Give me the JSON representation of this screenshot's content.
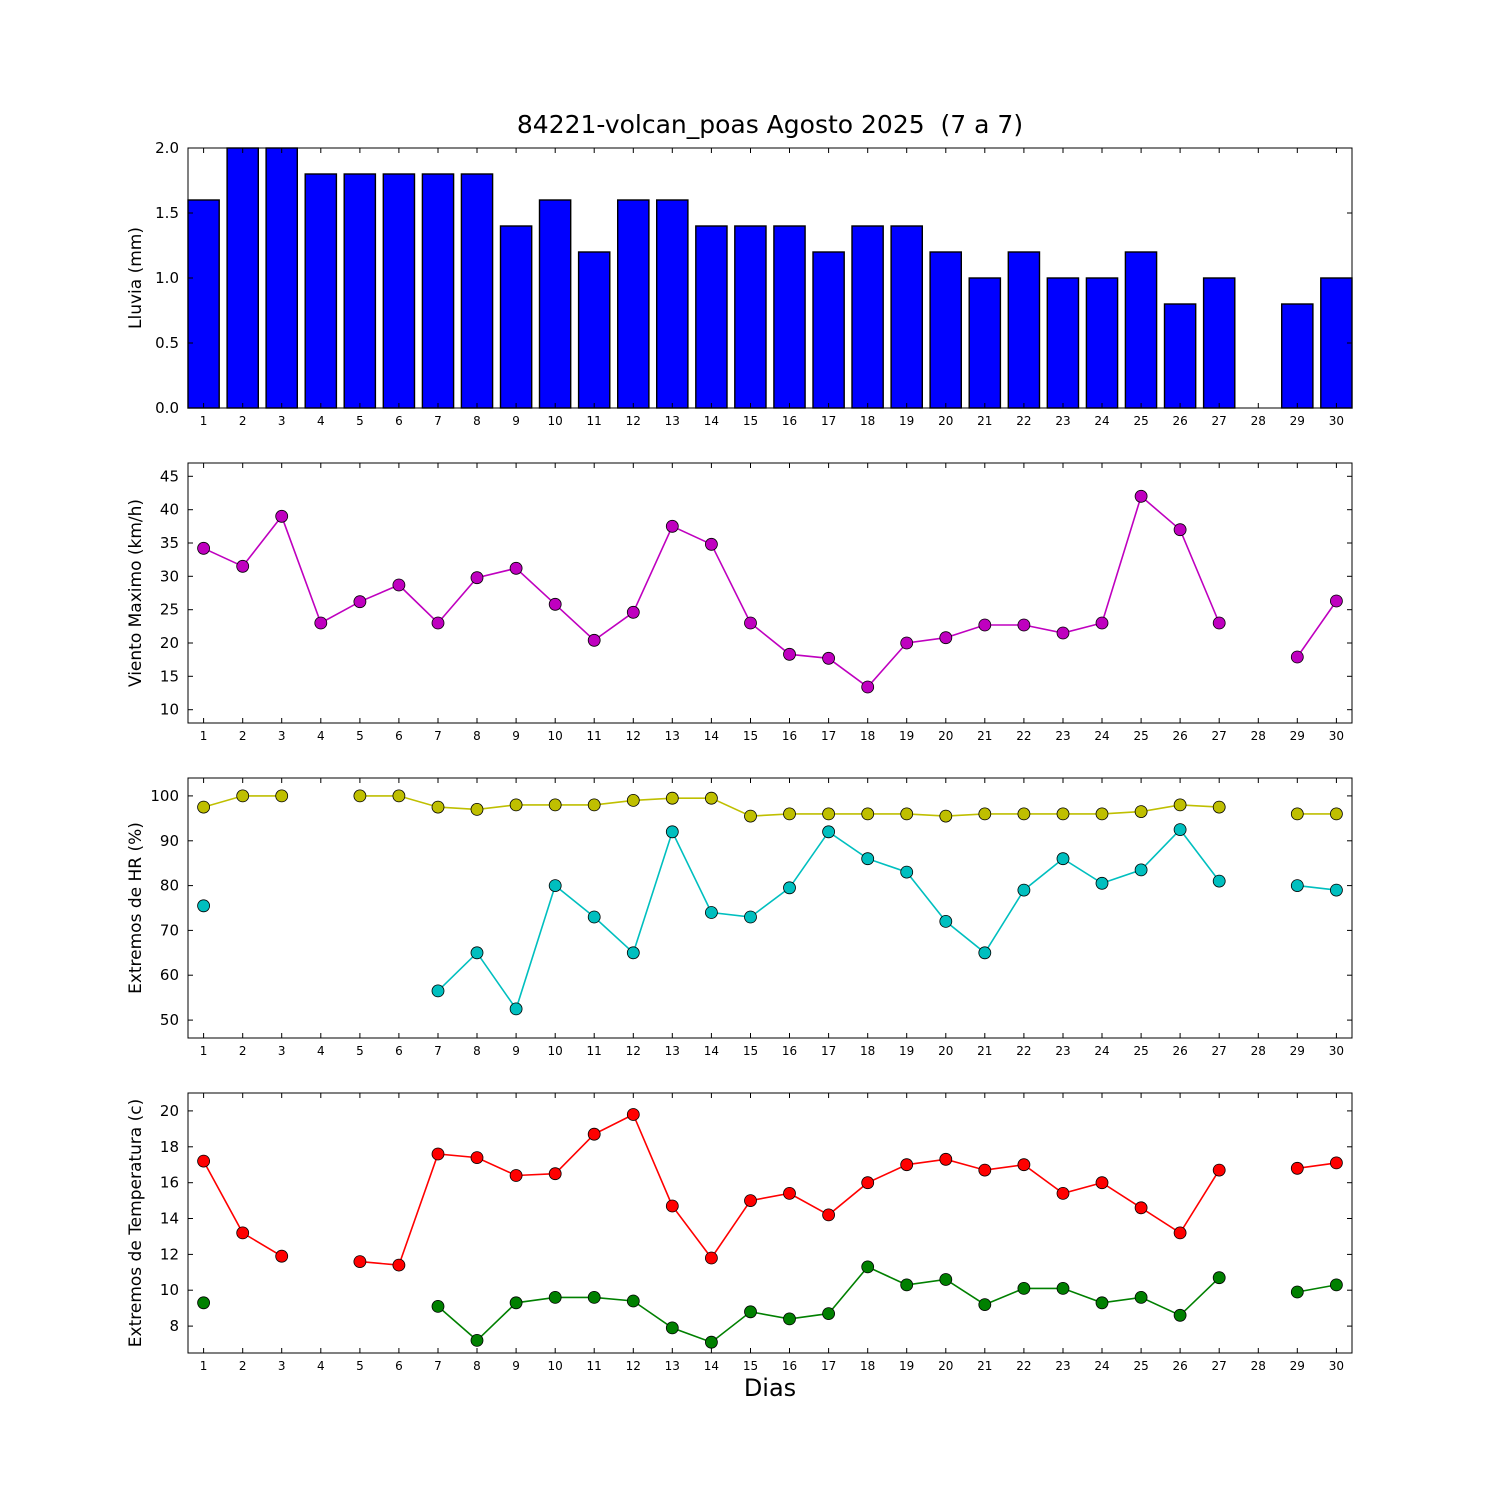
{
  "figure": {
    "title": "84221-volcan_poas Agosto 2025  (7 a 7)",
    "xlabel": "Dias",
    "background": "#ffffff",
    "categories": [
      1,
      2,
      3,
      4,
      5,
      6,
      7,
      8,
      9,
      10,
      11,
      12,
      13,
      14,
      15,
      16,
      17,
      18,
      19,
      20,
      21,
      22,
      23,
      24,
      25,
      26,
      27,
      28,
      29,
      30
    ]
  },
  "chart_data": [
    {
      "type": "bar",
      "ylabel": "Lluvia (mm)",
      "bar_color": "#0000ff",
      "bar_edge_color": "#000000",
      "ylim": [
        0,
        2
      ],
      "yticks": [
        0,
        0.5,
        1,
        1.5,
        2
      ],
      "ytick_labels": [
        "0.0",
        "0.5",
        "1.0",
        "1.5",
        "2.0"
      ],
      "values": [
        1.6,
        2.0,
        2.0,
        1.8,
        1.8,
        1.8,
        1.8,
        1.8,
        1.4,
        1.6,
        1.2,
        1.6,
        1.6,
        1.4,
        1.4,
        1.4,
        1.2,
        1.4,
        1.4,
        1.2,
        1.0,
        1.2,
        1.0,
        1.0,
        1.2,
        0.8,
        1.0,
        0,
        0.8,
        1.0
      ]
    },
    {
      "type": "line",
      "ylabel": "Viento Maximo (km/h)",
      "ylim": [
        8,
        47
      ],
      "yticks": [
        10,
        15,
        20,
        25,
        30,
        35,
        40,
        45
      ],
      "ytick_labels": [
        "10",
        "15",
        "20",
        "25",
        "30",
        "35",
        "40",
        "45"
      ],
      "series": [
        {
          "name": "viento-maximo",
          "color": "#bf00bf",
          "values": [
            34.2,
            31.5,
            39.0,
            23.0,
            26.2,
            28.7,
            23.0,
            29.8,
            31.2,
            25.8,
            20.4,
            24.6,
            37.5,
            34.8,
            23.0,
            18.3,
            17.7,
            13.4,
            20.0,
            20.8,
            22.7,
            22.7,
            21.5,
            23.0,
            42.0,
            37.0,
            23.0,
            null,
            17.9,
            26.3
          ]
        }
      ]
    },
    {
      "type": "line",
      "ylabel": "Extremos de HR (%)",
      "ylim": [
        46,
        104
      ],
      "yticks": [
        50,
        60,
        70,
        80,
        90,
        100
      ],
      "ytick_labels": [
        "50",
        "60",
        "70",
        "80",
        "90",
        "100"
      ],
      "series": [
        {
          "name": "hr-maxima",
          "color": "#bfbf00",
          "values": [
            97.5,
            100,
            100,
            null,
            100,
            100,
            97.5,
            97,
            98,
            98,
            98,
            99,
            99.5,
            99.5,
            95.5,
            96,
            96,
            96,
            96,
            95.5,
            96,
            96,
            96,
            96,
            96.5,
            98,
            97.5,
            null,
            96,
            96
          ]
        },
        {
          "name": "hr-minima",
          "color": "#00bfbf",
          "values": [
            75.5,
            null,
            null,
            null,
            null,
            null,
            56.5,
            65,
            52.5,
            80,
            73,
            65,
            92,
            74,
            73,
            79.5,
            92,
            86,
            83,
            72,
            65,
            79,
            86,
            80.5,
            83.5,
            92.5,
            81,
            null,
            80,
            79
          ]
        }
      ]
    },
    {
      "type": "line",
      "ylabel": "Extremos de Temperatura (c)",
      "ylim": [
        6.5,
        21
      ],
      "yticks": [
        8,
        10,
        12,
        14,
        16,
        18,
        20
      ],
      "ytick_labels": [
        "8",
        "10",
        "12",
        "14",
        "16",
        "18",
        "20"
      ],
      "series": [
        {
          "name": "temperatura-maxima",
          "color": "#ff0000",
          "values": [
            17.2,
            13.2,
            11.9,
            null,
            11.6,
            11.4,
            17.6,
            17.4,
            16.4,
            16.5,
            18.7,
            19.8,
            14.7,
            11.8,
            15.0,
            15.4,
            14.2,
            16.0,
            17.0,
            17.3,
            16.7,
            17.0,
            15.4,
            16.0,
            14.6,
            13.2,
            16.7,
            null,
            16.8,
            17.1
          ]
        },
        {
          "name": "temperatura-minima",
          "color": "#008000",
          "values": [
            9.3,
            null,
            null,
            null,
            null,
            null,
            9.1,
            7.2,
            9.3,
            9.6,
            9.6,
            9.4,
            7.9,
            7.1,
            8.8,
            8.4,
            8.7,
            11.3,
            10.3,
            10.6,
            9.2,
            10.1,
            10.1,
            9.3,
            9.6,
            8.6,
            10.7,
            null,
            9.9,
            10.3
          ]
        }
      ]
    }
  ]
}
